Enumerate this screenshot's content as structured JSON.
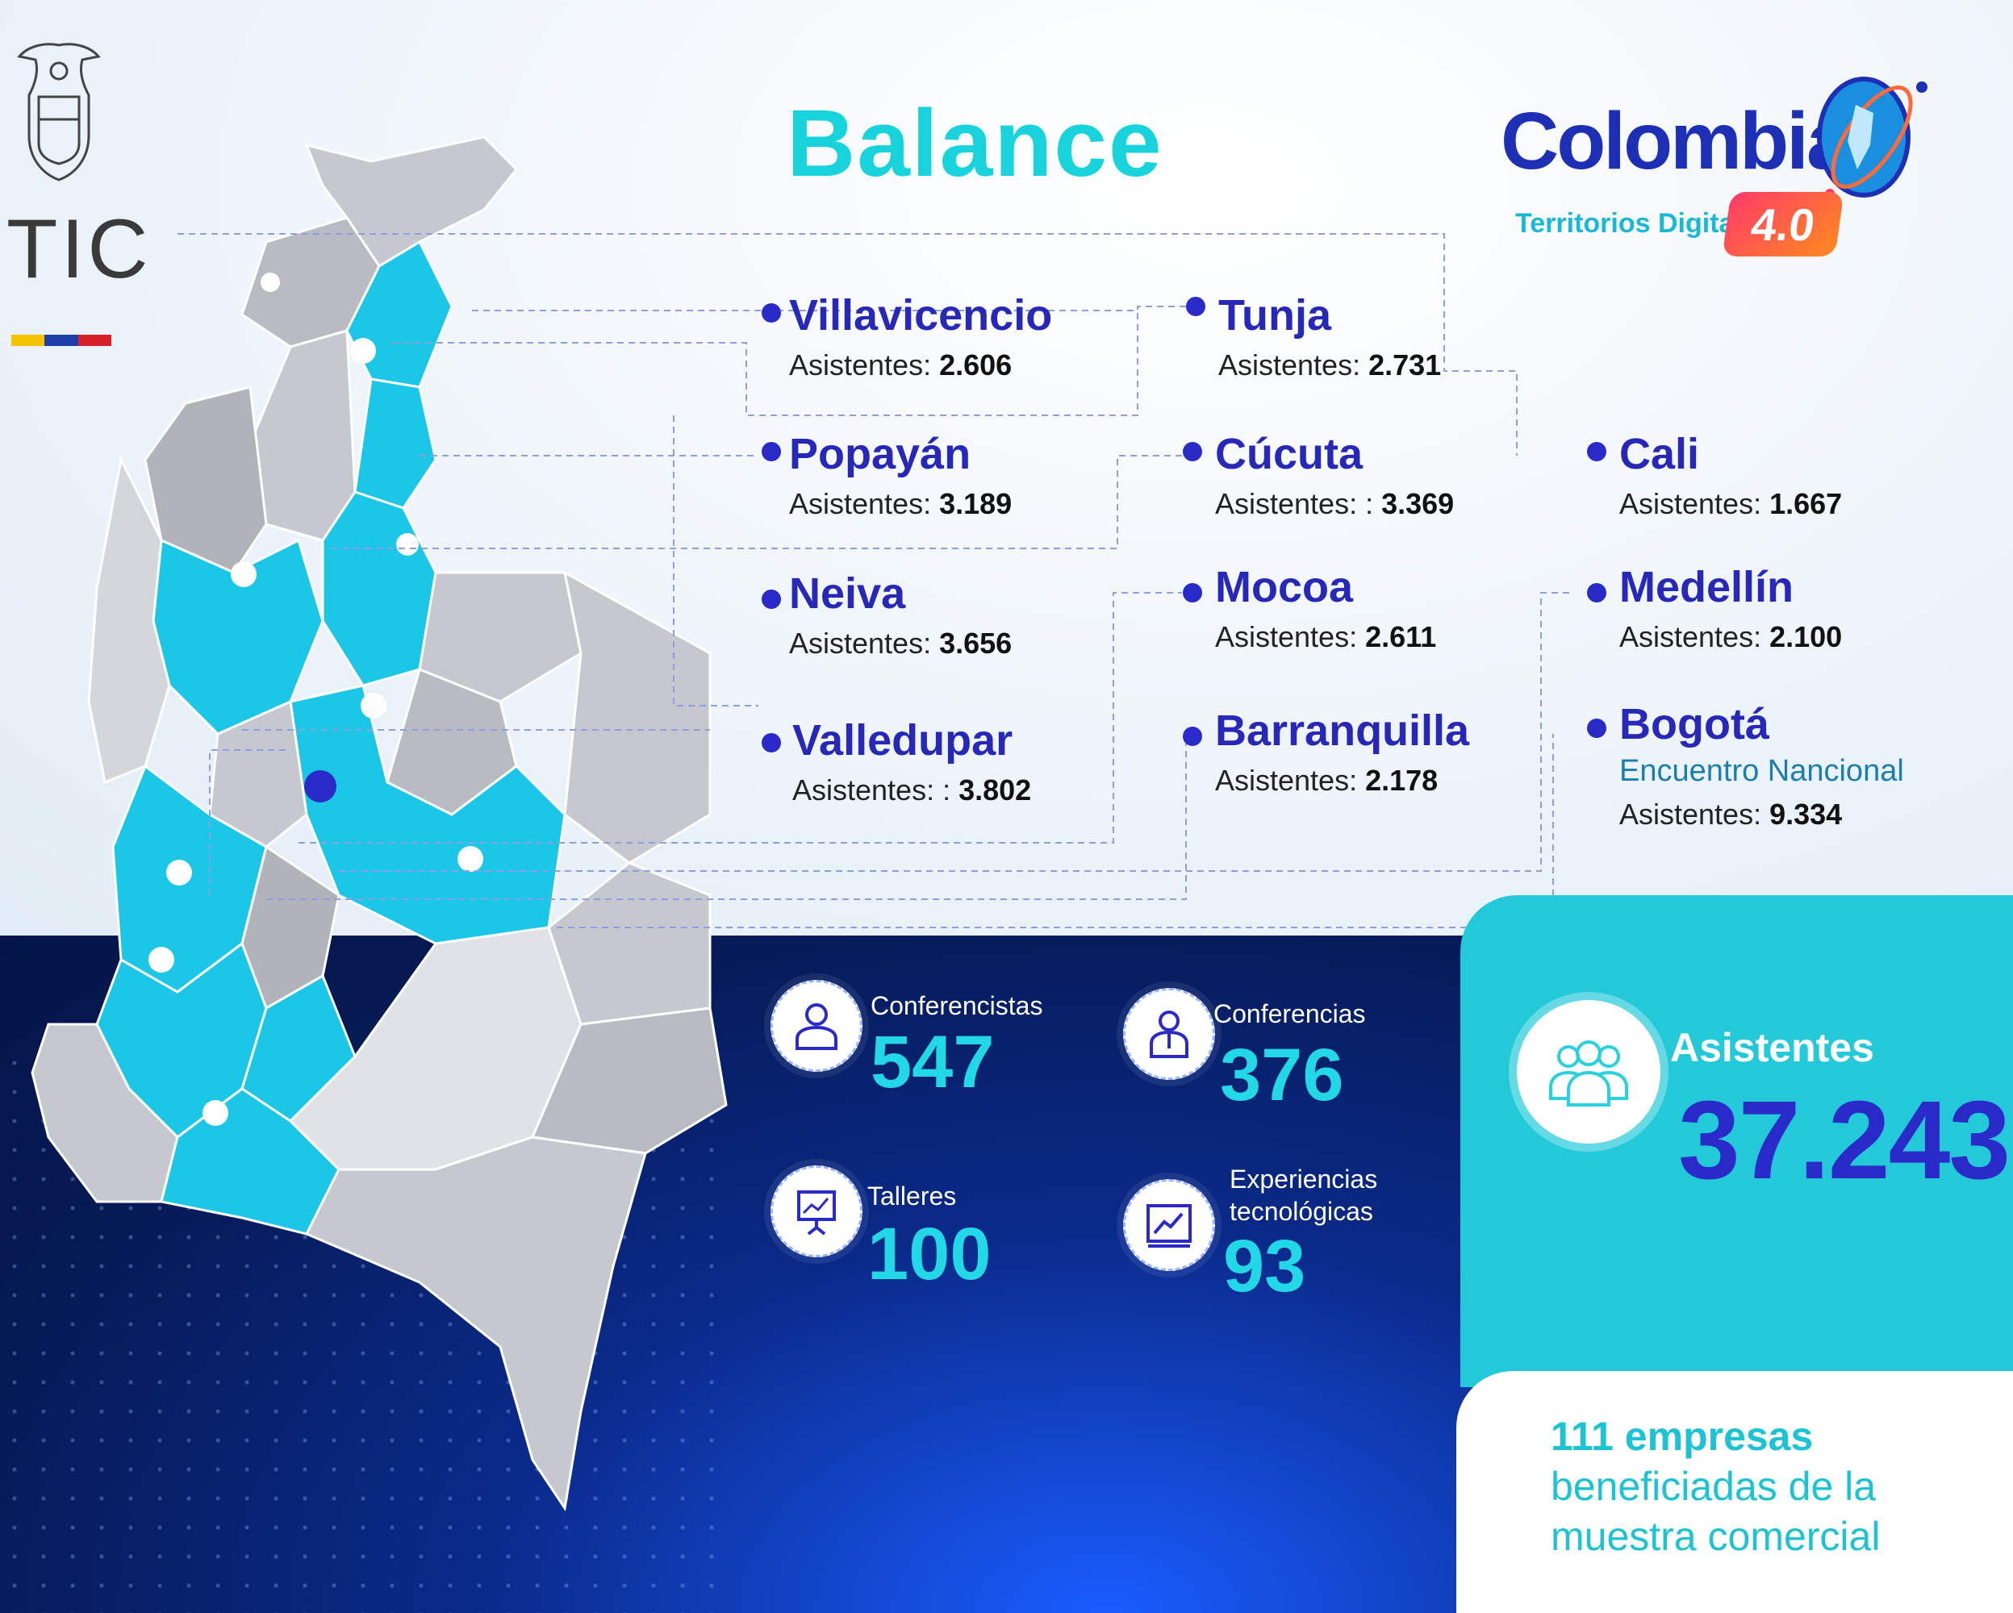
{
  "header": {
    "logo_text": "TIC",
    "title": "Balance",
    "brand_name": "Colombia",
    "brand_subtitle": "Territorios Digitales",
    "brand_version": "4.0"
  },
  "cities": [
    {
      "name": "Villavicencio",
      "label": "Asistentes:",
      "value": "2.606"
    },
    {
      "name": "Popayán",
      "label": "Asistentes:",
      "value": "3.189"
    },
    {
      "name": "Neiva",
      "label": "Asistentes:",
      "value": "3.656"
    },
    {
      "name": "Valledupar",
      "label": "Asistentes: :",
      "value": "3.802"
    },
    {
      "name": "Tunja",
      "label": "Asistentes:",
      "value": "2.731"
    },
    {
      "name": "Cúcuta",
      "label": "Asistentes: :",
      "value": "3.369"
    },
    {
      "name": "Mocoa",
      "label": "Asistentes:",
      "value": "2.611"
    },
    {
      "name": "Barranquilla",
      "label": "Asistentes:",
      "value": "2.178"
    },
    {
      "name": "Cali",
      "label": "Asistentes:",
      "value": "1.667"
    },
    {
      "name": "Medellín",
      "label": "Asistentes:",
      "value": "2.100"
    },
    {
      "name": "Bogotá",
      "note": "Encuentro Nancional",
      "label": "Asistentes:",
      "value": "9.334"
    }
  ],
  "stats": [
    {
      "label": "Conferencistas",
      "value": "547",
      "icon": "speaker-icon"
    },
    {
      "label": "Conferencias",
      "value": "376",
      "icon": "presenter-icon"
    },
    {
      "label": "Talleres",
      "value": "100",
      "icon": "whiteboard-icon"
    },
    {
      "label": "Experiencias tecnológicas",
      "value": "93",
      "icon": "chart-screen-icon"
    }
  ],
  "total": {
    "label": "Asistentes",
    "value": "37.243",
    "icon": "group-icon"
  },
  "note": {
    "strong": "111 empresas",
    "rest": "beneficiadas de la muestra comercial"
  },
  "colors": {
    "highlight_region": "#1bc6e6",
    "base_region": "#c5c9cf",
    "city_text": "#2727b8",
    "accent": "#22d7e6"
  }
}
